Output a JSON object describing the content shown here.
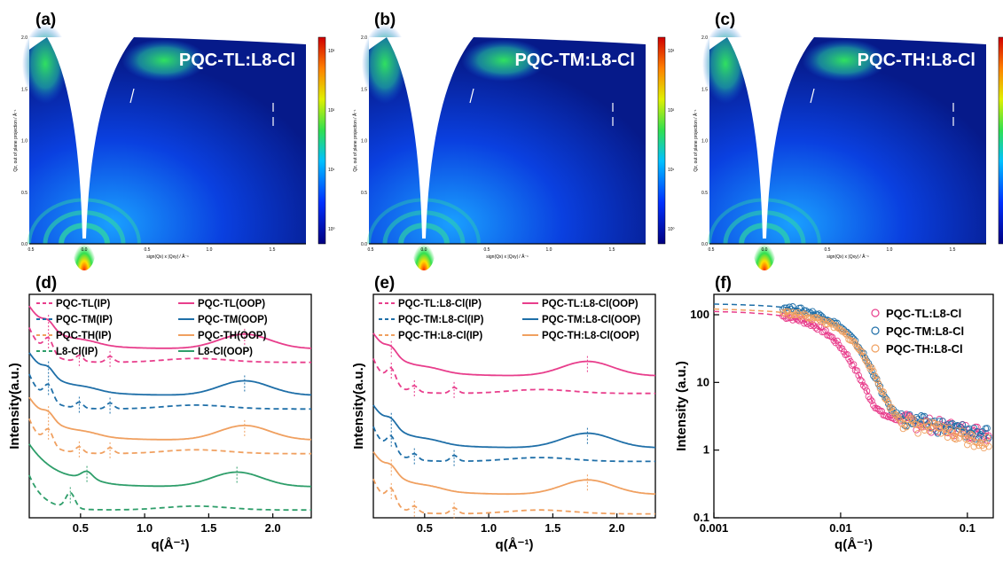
{
  "panel_labels": [
    "(a)",
    "(b)",
    "(c)",
    "(d)",
    "(e)",
    "(f)"
  ],
  "colors": {
    "tl": "#e83e8c",
    "tm": "#1f6fa8",
    "th": "#f0a060",
    "l8": "#2e9e6a"
  },
  "gixd_maps": [
    {
      "title": "PQC-TL:L8-Cl",
      "ring_strength": 1.0
    },
    {
      "title": "PQC-TM:L8-Cl",
      "ring_strength": 0.85
    },
    {
      "title": "PQC-TH:L8-Cl",
      "ring_strength": 0.9
    }
  ],
  "gixd_axes": {
    "x_label": "sign(Qx) x |Qxy|  / Å⁻¹",
    "y_label": "Qz, out of plane projection  / Å⁻¹",
    "x_ticks": [
      "0.5",
      "0.0",
      "0.5",
      "1.0",
      "1.5"
    ],
    "y_ticks": [
      "0.0",
      "0.5",
      "1.0",
      "1.5",
      "2.0"
    ],
    "cbar_ticks": [
      "10⁰",
      "10¹",
      "10²",
      "10³"
    ]
  },
  "chart_data": [
    {
      "type": "line",
      "panel": "(d)",
      "xlabel": "q(Å⁻¹)",
      "ylabel": "Intensity(a.u.)",
      "xlim": [
        0.1,
        2.3
      ],
      "x_ticks": [
        "0.5",
        "1.0",
        "1.5",
        "2.0"
      ],
      "series": [
        {
          "name": "PQC-TL(IP)",
          "style": "dashed",
          "color": "tl",
          "offset": 8.0,
          "peaks": [
            0.25,
            0.49,
            0.73
          ]
        },
        {
          "name": "PQC-TL(OOP)",
          "style": "solid",
          "color": "tl",
          "offset": 8.7,
          "peaks": [
            0.25,
            1.78
          ]
        },
        {
          "name": "PQC-TM(IP)",
          "style": "dashed",
          "color": "tm",
          "offset": 5.6,
          "peaks": [
            0.25,
            0.49,
            0.73
          ]
        },
        {
          "name": "PQC-TM(OOP)",
          "style": "solid",
          "color": "tm",
          "offset": 6.3,
          "peaks": [
            0.25,
            1.78
          ]
        },
        {
          "name": "PQC-TH(IP)",
          "style": "dashed",
          "color": "th",
          "offset": 3.3,
          "peaks": [
            0.25,
            0.49,
            0.73
          ]
        },
        {
          "name": "PQC-TH(OOP)",
          "style": "solid",
          "color": "th",
          "offset": 4.0,
          "peaks": [
            0.25,
            1.78
          ]
        },
        {
          "name": "L8-Cl(IP)",
          "style": "dashed",
          "color": "l8",
          "offset": 0.4,
          "peaks": [
            0.42
          ]
        },
        {
          "name": "L8-Cl(OOP)",
          "style": "solid",
          "color": "l8",
          "offset": 1.6,
          "peaks": [
            0.55,
            1.72
          ]
        }
      ],
      "peak_markers": [
        0.25,
        0.49,
        0.73,
        1.78,
        1.72,
        0.42
      ]
    },
    {
      "type": "line",
      "panel": "(e)",
      "xlabel": "q(Å⁻¹)",
      "ylabel": "Intensity(a.u.)",
      "xlim": [
        0.1,
        2.3
      ],
      "x_ticks": [
        "0.5",
        "1.0",
        "1.5",
        "2.0"
      ],
      "series": [
        {
          "name": "PQC-TL:L8-Cl(IP)",
          "style": "dashed",
          "color": "tl",
          "offset": 6.4,
          "peaks": [
            0.24,
            0.42,
            0.73
          ]
        },
        {
          "name": "PQC-TL:L8-Cl(OOP)",
          "style": "solid",
          "color": "tl",
          "offset": 7.3,
          "peaks": [
            0.24,
            1.77
          ]
        },
        {
          "name": "PQC-TM:L8-Cl(IP)",
          "style": "dashed",
          "color": "tm",
          "offset": 2.9,
          "peaks": [
            0.24,
            0.42,
            0.73
          ]
        },
        {
          "name": "PQC-TM:L8-Cl(OOP)",
          "style": "solid",
          "color": "tm",
          "offset": 3.6,
          "peaks": [
            0.24,
            1.77
          ]
        },
        {
          "name": "PQC-TH:L8-Cl(IP)",
          "style": "dashed",
          "color": "th",
          "offset": 0.2,
          "peaks": [
            0.24,
            0.42,
            0.73
          ]
        },
        {
          "name": "PQC-TH:L8-Cl(OOP)",
          "style": "solid",
          "color": "th",
          "offset": 1.2,
          "peaks": [
            0.24,
            1.77
          ]
        }
      ],
      "peak_markers": [
        0.24,
        0.42,
        0.73,
        1.77
      ]
    },
    {
      "type": "scatter",
      "panel": "(f)",
      "xlabel": "q(Å⁻¹)",
      "ylabel": "Intensity (a.u.)",
      "x_scale": "log",
      "y_scale": "log",
      "xlim": [
        0.001,
        0.16
      ],
      "ylim": [
        0.1,
        200
      ],
      "x_ticks": [
        0.001,
        0.01,
        0.1
      ],
      "x_tick_labels": [
        "0.001",
        "0.01",
        "0.1"
      ],
      "y_ticks": [
        0.1,
        1,
        10,
        100
      ],
      "y_tick_labels": [
        "0.1",
        "1",
        "10",
        "100"
      ],
      "legend_position": "top-right",
      "series": [
        {
          "name": "PQC-TL:L8-Cl",
          "color": "tl",
          "I0": 105,
          "Rg_q": 0.0075,
          "Ib": 3.2,
          "slope": -0.3
        },
        {
          "name": "PQC-TM:L8-Cl",
          "color": "tm",
          "I0": 135,
          "Rg_q": 0.0095,
          "Ib": 3.4,
          "slope": -0.35
        },
        {
          "name": "PQC-TH:L8-Cl",
          "color": "th",
          "I0": 110,
          "Rg_q": 0.01,
          "Ib": 3.2,
          "slope": -0.45
        }
      ]
    }
  ]
}
